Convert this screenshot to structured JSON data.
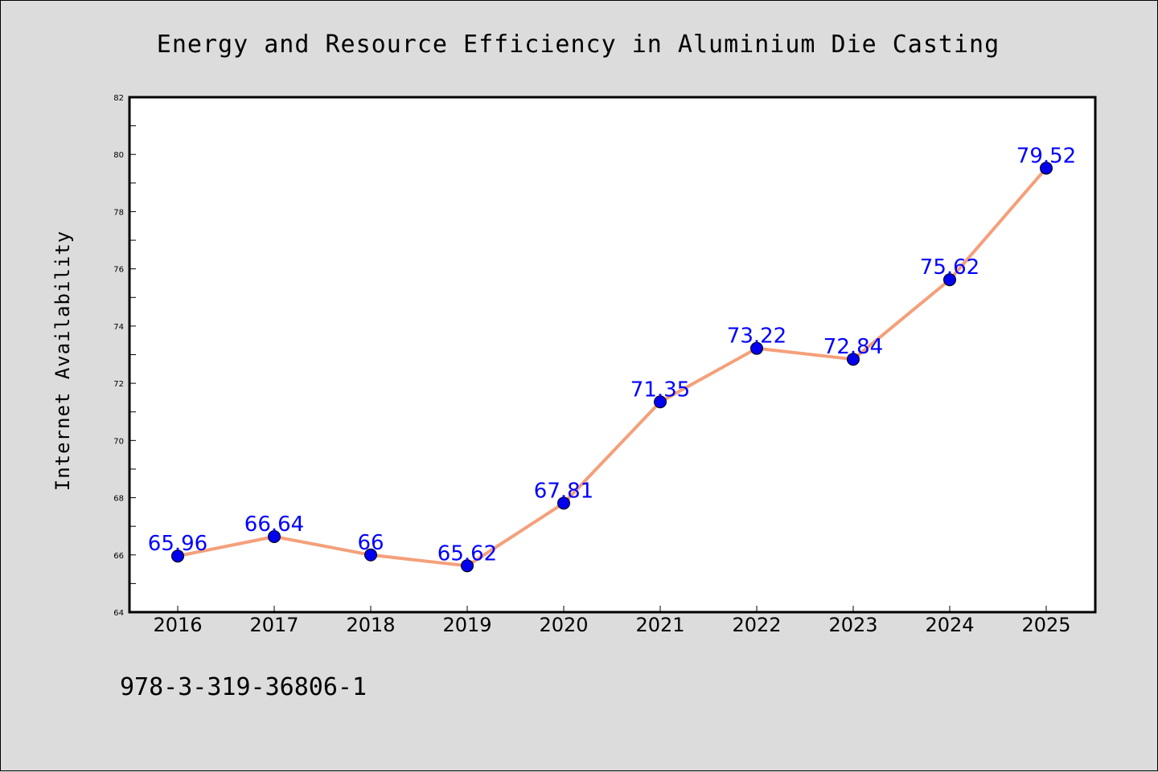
{
  "chart_data": {
    "type": "line",
    "title": "Energy and Resource Efficiency in Aluminium Die Casting",
    "xlabel": "",
    "ylabel": "Internet Availability",
    "categories": [
      "2016",
      "2017",
      "2018",
      "2019",
      "2020",
      "2021",
      "2022",
      "2023",
      "2024",
      "2025"
    ],
    "series": [
      {
        "values": [
          65.96,
          66.64,
          66,
          65.62,
          67.81,
          71.35,
          73.22,
          72.84,
          75.62,
          79.52
        ],
        "data_labels": [
          "65.96",
          "66.64",
          "66",
          "65.62",
          "67.81",
          "71.35",
          "73.22",
          "72.84",
          "75.62",
          "79.52"
        ]
      }
    ],
    "ylim": [
      64,
      82
    ],
    "yticks": [
      "64",
      "66",
      "68",
      "70",
      "72",
      "74",
      "76",
      "78",
      "80",
      "82"
    ],
    "grid": false,
    "legend": "none",
    "colors": {
      "line": "#f4a07a",
      "marker": "#0000ee",
      "label": "#0000ff",
      "plot_bg": "#ffffff",
      "page_bg": "#dcdcdc"
    }
  },
  "footer": {
    "isbn": "978-3-319-36806-1"
  }
}
